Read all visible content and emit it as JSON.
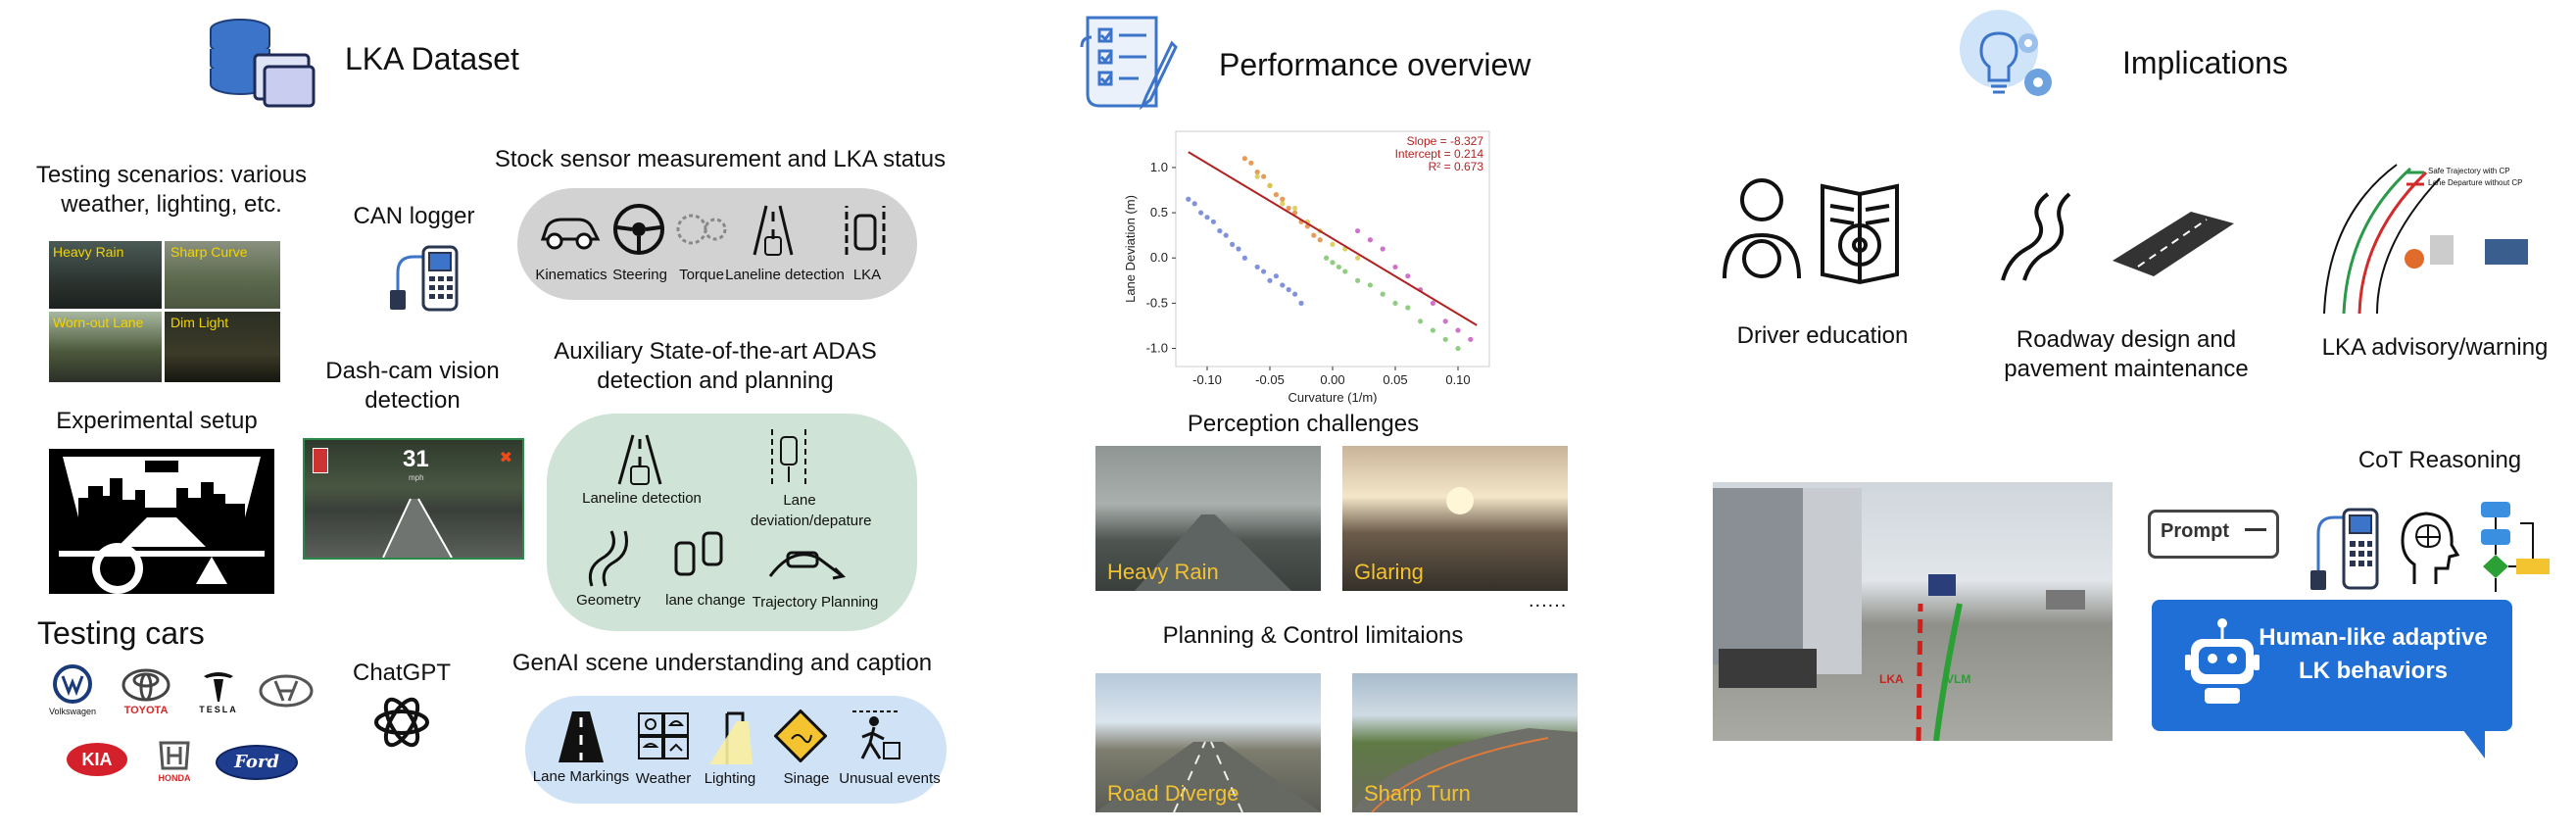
{
  "sections": {
    "dataset": "LKA Dataset",
    "performance": "Performance overview",
    "implications": "Implications"
  },
  "dataset": {
    "scenarios_title": "Testing scenarios: various weather, lighting, etc.",
    "scenario_tiles": [
      "Heavy Rain",
      "Sharp Curve",
      "Worn-out Lane",
      "Dim Light"
    ],
    "setup_title": "Experimental setup",
    "cars_title": "Testing cars",
    "car_logos": [
      "Volkswagen",
      "TOYOTA",
      "TESLA",
      "HONDA",
      "KIA",
      "Ford"
    ],
    "can_logger": "CAN logger",
    "dashcam_title": "Dash-cam vision detection",
    "dashcam_speed": "31",
    "dashcam_unit": "mph",
    "chatgpt": "ChatGPT",
    "stock_title": "Stock sensor measurement and LKA  status",
    "stock_items": [
      "Kinematics",
      "Steering",
      "Torque",
      "Laneline detection",
      "LKA"
    ],
    "aux_title": "Auxiliary State-of-the-art ADAS detection and planning",
    "aux_items": [
      "Laneline detection",
      "Lane deviation/depature",
      "Geometry",
      "lane change",
      "Trajectory Planning"
    ],
    "genai_title": "GenAI scene understanding and caption",
    "genai_items": [
      "Lane Markings",
      "Weather",
      "Lighting",
      "Sinage",
      "Unusual events"
    ]
  },
  "performance": {
    "perception_title": "Perception challenges",
    "perception_images": [
      "Heavy Rain",
      "Glaring"
    ],
    "ellipsis": "......",
    "planning_title": "Planning & Control limitaions",
    "planning_images": [
      "Road Diverge",
      "Sharp Turn"
    ]
  },
  "chart_data": {
    "type": "scatter",
    "xlabel": "Curvature (1/m)",
    "ylabel": "Lane Deviation (m)",
    "xlim": [
      -0.125,
      0.125
    ],
    "ylim": [
      -1.2,
      1.4
    ],
    "xticks": [
      "-0.10",
      "-0.05",
      "0.00",
      "0.05",
      "0.10"
    ],
    "yticks": [
      "1.0",
      "0.5",
      "0.0",
      "-0.5",
      "-1.0"
    ],
    "annotations": [
      "Slope = -8.327",
      "Intercept = 0.214",
      "R² = 0.673"
    ],
    "regression": {
      "slope": -8.327,
      "intercept": 0.214
    },
    "colors": {
      "points": [
        "#6a7fd8",
        "#e08a3c",
        "#7cc46b",
        "#c65bbf",
        "#d6c94a",
        "#4aa8d6",
        "#b07a55"
      ],
      "line": "#b22222"
    },
    "series": [
      {
        "x": [
          -0.115,
          -0.11,
          -0.105,
          -0.1,
          -0.095,
          -0.09,
          -0.085,
          -0.08,
          -0.075,
          -0.07,
          -0.06,
          -0.055,
          -0.05,
          -0.045,
          -0.04,
          -0.035,
          -0.03,
          -0.025
        ],
        "y": [
          0.65,
          0.6,
          0.5,
          0.45,
          0.4,
          0.3,
          0.25,
          0.15,
          0.1,
          0.0,
          -0.1,
          -0.15,
          -0.25,
          -0.2,
          -0.3,
          -0.35,
          -0.4,
          -0.5
        ]
      },
      {
        "x": [
          -0.07,
          -0.065,
          -0.06,
          -0.055,
          -0.05,
          -0.045,
          -0.04,
          -0.035,
          -0.03,
          -0.025,
          -0.02,
          -0.015,
          -0.01
        ],
        "y": [
          1.1,
          1.05,
          0.95,
          0.9,
          0.8,
          0.7,
          0.65,
          0.55,
          0.5,
          0.4,
          0.35,
          0.25,
          0.2
        ]
      },
      {
        "x": [
          -0.005,
          0.0,
          0.005,
          0.01,
          0.02,
          0.03,
          0.04,
          0.05,
          0.06,
          0.07,
          0.08,
          0.09,
          0.1
        ],
        "y": [
          0.0,
          -0.05,
          -0.1,
          -0.15,
          -0.25,
          -0.3,
          -0.4,
          -0.5,
          -0.55,
          -0.7,
          -0.8,
          -0.9,
          -1.0
        ]
      },
      {
        "x": [
          0.02,
          0.03,
          0.04,
          0.05,
          0.06,
          0.07,
          0.08,
          0.09,
          0.1,
          0.11
        ],
        "y": [
          0.3,
          0.2,
          0.1,
          -0.1,
          -0.2,
          -0.35,
          -0.5,
          -0.7,
          -0.8,
          -0.9
        ]
      },
      {
        "x": [
          -0.06,
          -0.05,
          -0.04,
          -0.03,
          -0.02,
          -0.01,
          0.0,
          0.01,
          0.02
        ],
        "y": [
          0.9,
          0.8,
          0.6,
          0.55,
          0.4,
          0.3,
          0.15,
          0.1,
          0.0
        ]
      }
    ]
  },
  "implications": {
    "driver_education": "Driver education",
    "roadway": "Roadway design and pavement maintenance",
    "advisory": "LKA advisory/warning",
    "advisory_legend": [
      "Safe Trajectory with CP",
      "Lane Departure without CP"
    ],
    "cot_title": "CoT Reasoning",
    "prompt": "Prompt",
    "road_labels": [
      "LKA",
      "VLM"
    ],
    "bubble_text": "Human-like adaptive LK behaviors"
  }
}
